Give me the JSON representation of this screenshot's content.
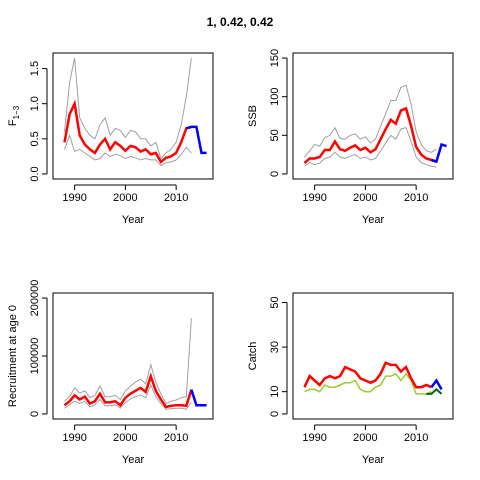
{
  "title": "1, 0.42, 0.42",
  "colors": {
    "estimate": "#ff0000",
    "projection": "#0000ff",
    "bounds": "#a0a0a0",
    "frame": "#000000",
    "catch_observed": "#9acd32",
    "catch_model": "#ff0000",
    "catch_forecast_obs": "#006400"
  },
  "chart_data": [
    {
      "type": "line",
      "name": "F",
      "ylabel": "F1−3",
      "xlabel": "Year",
      "xlim": [
        1987,
        2016
      ],
      "ylim": [
        0,
        1.65
      ],
      "xticks": [
        1990,
        2000,
        2010
      ],
      "yticks": [
        0.0,
        0.5,
        1.0,
        1.5
      ],
      "ytick_labels": [
        "0.0",
        "0.5",
        "1.0",
        "1.5"
      ],
      "x": [
        1988,
        1989,
        1990,
        1991,
        1992,
        1993,
        1994,
        1995,
        1996,
        1997,
        1998,
        1999,
        2000,
        2001,
        2002,
        2003,
        2004,
        2005,
        2006,
        2007,
        2008,
        2009,
        2010,
        2011,
        2012,
        2013
      ],
      "estimate": [
        0.45,
        0.85,
        1.0,
        0.55,
        0.42,
        0.35,
        0.3,
        0.42,
        0.5,
        0.35,
        0.45,
        0.4,
        0.33,
        0.4,
        0.38,
        0.32,
        0.35,
        0.28,
        0.3,
        0.17,
        0.23,
        0.25,
        0.3,
        0.45,
        0.65,
        0.67
      ],
      "lower": [
        0.35,
        0.55,
        0.32,
        0.35,
        0.3,
        0.25,
        0.2,
        0.22,
        0.3,
        0.25,
        0.28,
        0.26,
        0.22,
        0.25,
        0.23,
        0.2,
        0.22,
        0.2,
        0.2,
        0.12,
        0.16,
        0.17,
        0.2,
        0.28,
        0.38,
        0.3
      ],
      "upper": [
        0.6,
        1.3,
        1.65,
        0.8,
        0.65,
        0.55,
        0.5,
        0.7,
        0.8,
        0.55,
        0.65,
        0.62,
        0.52,
        0.62,
        0.6,
        0.5,
        0.5,
        0.4,
        0.45,
        0.22,
        0.3,
        0.35,
        0.45,
        0.7,
        1.1,
        1.65
      ],
      "projection_x": [
        2012,
        2013,
        2014,
        2015,
        2016
      ],
      "projection": [
        0.65,
        0.67,
        0.67,
        0.3,
        0.3
      ]
    },
    {
      "type": "line",
      "name": "SSB",
      "ylabel": "SSB",
      "xlabel": "Year",
      "xlim": [
        1987,
        2016
      ],
      "ylim": [
        0,
        150
      ],
      "xticks": [
        1990,
        2000,
        2010
      ],
      "yticks": [
        0,
        50,
        100,
        150
      ],
      "ytick_labels": [
        "0",
        "50",
        "100",
        "150"
      ],
      "x": [
        1988,
        1989,
        1990,
        1991,
        1992,
        1993,
        1994,
        1995,
        1996,
        1997,
        1998,
        1999,
        2000,
        2001,
        2002,
        2003,
        2004,
        2005,
        2006,
        2007,
        2008,
        2009,
        2010,
        2011,
        2012,
        2013,
        2014
      ],
      "estimate": [
        14,
        20,
        20,
        22,
        31,
        31,
        42,
        32,
        30,
        34,
        37,
        31,
        34,
        28,
        32,
        45,
        58,
        70,
        65,
        82,
        85,
        62,
        35,
        25,
        20,
        18,
        16
      ],
      "lower": [
        10,
        15,
        12,
        14,
        20,
        22,
        28,
        22,
        20,
        23,
        25,
        20,
        22,
        18,
        20,
        30,
        40,
        50,
        45,
        58,
        60,
        42,
        22,
        15,
        12,
        10,
        9
      ],
      "upper": [
        22,
        30,
        38,
        36,
        47,
        50,
        60,
        46,
        45,
        50,
        52,
        45,
        48,
        40,
        45,
        62,
        78,
        95,
        95,
        112,
        115,
        90,
        55,
        38,
        30,
        28,
        32
      ],
      "projection_x": [
        2013,
        2014,
        2015,
        2016
      ],
      "projection": [
        18,
        16,
        38,
        36
      ]
    },
    {
      "type": "line",
      "name": "Recruitment",
      "ylabel": "Recruitment at age 0",
      "xlabel": "Year",
      "xlim": [
        1987,
        2016
      ],
      "ylim": [
        0,
        200000
      ],
      "xticks": [
        1990,
        2000,
        2010
      ],
      "yticks": [
        0,
        100000,
        200000
      ],
      "ytick_labels": [
        "0",
        "100000",
        "200000"
      ],
      "x": [
        1988,
        1989,
        1990,
        1991,
        1992,
        1993,
        1994,
        1995,
        1996,
        1997,
        1998,
        1999,
        2000,
        2001,
        2002,
        2003,
        2004,
        2005,
        2006,
        2007,
        2008,
        2009,
        2010,
        2011,
        2012,
        2013
      ],
      "estimate": [
        15000,
        22000,
        32000,
        25000,
        30000,
        18000,
        22000,
        35000,
        20000,
        20000,
        22000,
        15000,
        28000,
        35000,
        40000,
        45000,
        38000,
        65000,
        40000,
        25000,
        12000,
        14000,
        15000,
        15000,
        14000,
        42000
      ],
      "lower": [
        10000,
        16000,
        22000,
        18000,
        22000,
        12000,
        16000,
        25000,
        14000,
        14000,
        16000,
        10000,
        20000,
        26000,
        30000,
        33000,
        28000,
        50000,
        30000,
        18000,
        8000,
        9000,
        10000,
        10000,
        8000,
        20000
      ],
      "upper": [
        22000,
        30000,
        45000,
        36000,
        40000,
        28000,
        32000,
        48000,
        30000,
        30000,
        32000,
        25000,
        40000,
        48000,
        55000,
        60000,
        52000,
        85000,
        55000,
        35000,
        18000,
        22000,
        24000,
        28000,
        30000,
        165000
      ],
      "projection_x": [
        2013,
        2014,
        2015,
        2016
      ],
      "projection": [
        42000,
        15000,
        15000,
        15000
      ]
    },
    {
      "type": "line",
      "name": "Catch",
      "ylabel": "Catch",
      "xlabel": "Year",
      "xlim": [
        1987,
        2016
      ],
      "ylim": [
        0,
        52
      ],
      "xticks": [
        1990,
        2000,
        2010
      ],
      "yticks": [
        0,
        10,
        30,
        50
      ],
      "ytick_labels": [
        "0",
        "10",
        "30",
        "50"
      ],
      "x": [
        1988,
        1989,
        1990,
        1991,
        1992,
        1993,
        1994,
        1995,
        1996,
        1997,
        1998,
        1999,
        2000,
        2001,
        2002,
        2003,
        2004,
        2005,
        2006,
        2007,
        2008,
        2009,
        2010,
        2011,
        2012,
        2013
      ],
      "model": [
        12,
        17,
        15,
        13,
        16,
        17,
        16,
        17,
        21,
        20,
        19,
        16,
        15,
        14,
        15,
        18,
        23,
        22,
        22,
        19,
        21,
        16,
        12,
        12,
        13,
        12
      ],
      "observed": [
        10,
        11,
        11,
        10,
        13,
        12,
        12,
        13,
        14,
        14,
        15,
        11,
        10,
        10,
        12,
        13,
        17,
        17,
        18,
        15,
        18,
        15,
        9,
        9,
        9,
        10
      ],
      "projection_x": [
        2013,
        2014,
        2015
      ],
      "projection": [
        12,
        15,
        11
      ],
      "forecast_obs_x": [
        2012,
        2013,
        2014,
        2015
      ],
      "forecast_obs": [
        9,
        9,
        11,
        9
      ]
    }
  ]
}
